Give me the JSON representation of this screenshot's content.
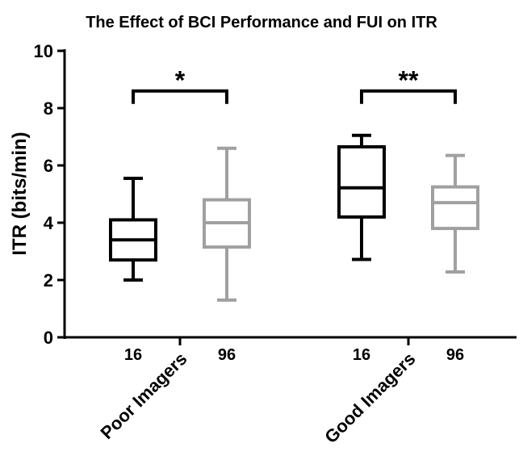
{
  "chart_data": {
    "type": "box",
    "title": "The Effect of BCI Performance and FUI on ITR",
    "ylabel": "ITR (bits/min)",
    "ylim": [
      0,
      10
    ],
    "yticks": [
      0,
      2,
      4,
      6,
      8,
      10
    ],
    "groups": [
      {
        "name": "Poor Imagers",
        "boxes": [
          {
            "label": "16",
            "color": "#000000",
            "min": 2.0,
            "q1": 2.7,
            "median": 3.4,
            "q3": 4.1,
            "max": 5.55
          },
          {
            "label": "96",
            "color": "#a0a0a0",
            "min": 1.3,
            "q1": 3.15,
            "median": 4.0,
            "q3": 4.8,
            "max": 6.6
          }
        ]
      },
      {
        "name": "Good Imagers",
        "boxes": [
          {
            "label": "16",
            "color": "#000000",
            "min": 2.72,
            "q1": 4.2,
            "median": 5.22,
            "q3": 6.65,
            "max": 7.05
          },
          {
            "label": "96",
            "color": "#a0a0a0",
            "min": 2.28,
            "q1": 3.8,
            "median": 4.7,
            "q3": 5.25,
            "max": 6.35
          }
        ]
      }
    ],
    "significance": [
      {
        "label": "*",
        "y": 8.6
      },
      {
        "label": "**",
        "y": 8.6
      }
    ]
  }
}
